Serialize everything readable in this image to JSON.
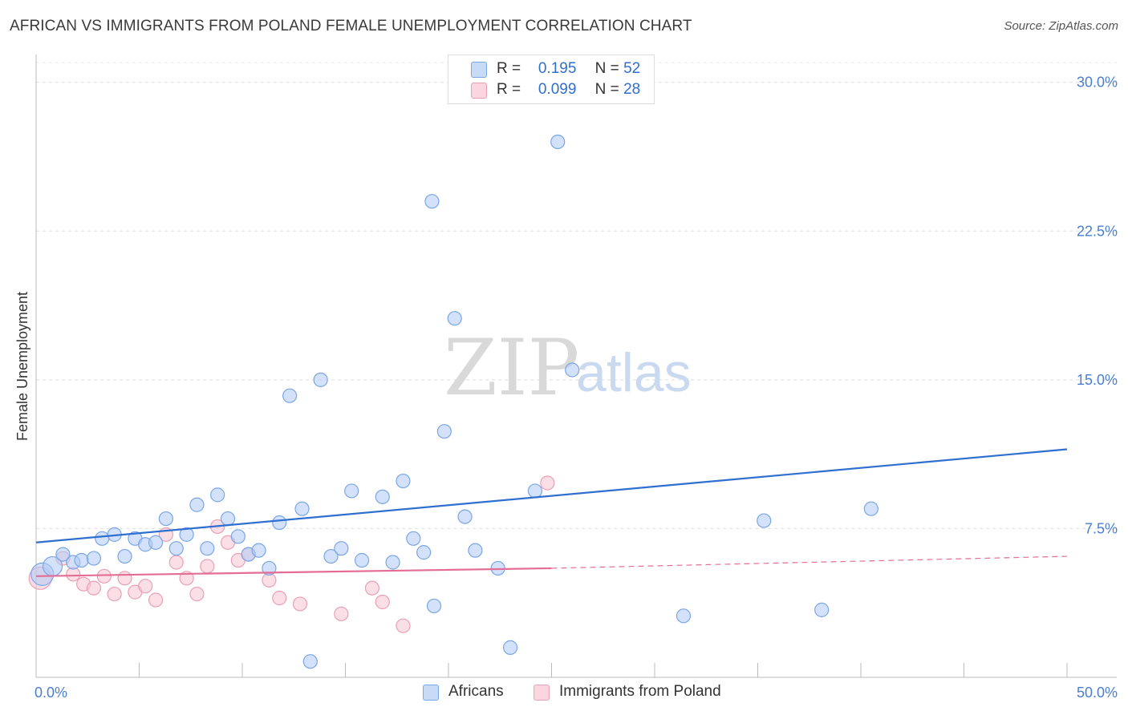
{
  "header": {
    "title": "AFRICAN VS IMMIGRANTS FROM POLAND FEMALE UNEMPLOYMENT CORRELATION CHART",
    "source": "Source: ZipAtlas.com"
  },
  "watermark": {
    "zip": "ZIP",
    "atlas": "atlas"
  },
  "legend": {
    "rows": [
      {
        "r_label": "R =",
        "r_value": "0.195",
        "n_label": "N =",
        "n_value": "52",
        "color": "#aecbf5"
      },
      {
        "r_label": "R =",
        "r_value": "0.099",
        "n_label": "N =",
        "n_value": "28",
        "color": "#f8c4d3"
      }
    ]
  },
  "bottom_legend": {
    "africans": "Africans",
    "poland": "Immigrants from Poland"
  },
  "colors": {
    "blue_fill": "#aecbf5",
    "blue_stroke": "#7aa6e6",
    "blue_line": "#2f6fd0",
    "pink_fill": "#f8c4d3",
    "pink_stroke": "#eaa0b6",
    "pink_line": "#e46d95"
  },
  "chart_data": {
    "type": "scatter",
    "title": "AFRICAN VS IMMIGRANTS FROM POLAND FEMALE UNEMPLOYMENT CORRELATION CHART",
    "xlabel": "",
    "ylabel": "Female Unemployment",
    "xlim": [
      0,
      50
    ],
    "ylim": [
      0,
      31
    ],
    "x_tick_labels": [
      "0.0%",
      "50.0%"
    ],
    "y_ticks": [
      7.5,
      15.0,
      22.5,
      30.0
    ],
    "y_tick_labels": [
      "7.5%",
      "15.0%",
      "22.5%",
      "30.0%"
    ],
    "grid": true,
    "legend_position": "top-center",
    "series": [
      {
        "name": "Africans",
        "points": [
          [
            0.3,
            5.2
          ],
          [
            0.8,
            5.6
          ],
          [
            1.3,
            6.2
          ],
          [
            1.8,
            5.8
          ],
          [
            2.2,
            5.9
          ],
          [
            2.8,
            6.0
          ],
          [
            3.2,
            7.0
          ],
          [
            3.8,
            7.2
          ],
          [
            4.3,
            6.1
          ],
          [
            4.8,
            7.0
          ],
          [
            5.3,
            6.7
          ],
          [
            5.8,
            6.8
          ],
          [
            6.3,
            8.0
          ],
          [
            6.8,
            6.5
          ],
          [
            7.3,
            7.2
          ],
          [
            7.8,
            8.7
          ],
          [
            8.3,
            6.5
          ],
          [
            8.8,
            9.2
          ],
          [
            9.3,
            8.0
          ],
          [
            9.8,
            7.1
          ],
          [
            10.3,
            6.2
          ],
          [
            10.8,
            6.4
          ],
          [
            11.3,
            5.5
          ],
          [
            11.8,
            7.8
          ],
          [
            12.3,
            14.2
          ],
          [
            12.9,
            8.5
          ],
          [
            13.3,
            0.8
          ],
          [
            13.8,
            15.0
          ],
          [
            14.3,
            6.1
          ],
          [
            14.8,
            6.5
          ],
          [
            15.3,
            9.4
          ],
          [
            15.8,
            5.9
          ],
          [
            16.8,
            9.1
          ],
          [
            17.3,
            5.8
          ],
          [
            17.8,
            9.9
          ],
          [
            18.3,
            7.0
          ],
          [
            18.8,
            6.3
          ],
          [
            19.2,
            24.0
          ],
          [
            19.3,
            3.6
          ],
          [
            19.8,
            12.4
          ],
          [
            20.3,
            18.1
          ],
          [
            20.8,
            8.1
          ],
          [
            21.3,
            6.4
          ],
          [
            22.4,
            5.5
          ],
          [
            23.0,
            1.5
          ],
          [
            24.2,
            9.4
          ],
          [
            25.3,
            27.0
          ],
          [
            26.0,
            15.5
          ],
          [
            31.4,
            3.1
          ],
          [
            35.3,
            7.9
          ],
          [
            38.1,
            3.4
          ],
          [
            40.5,
            8.5
          ]
        ]
      },
      {
        "name": "Immigrants from Poland",
        "points": [
          [
            0.2,
            5.0
          ],
          [
            1.3,
            6.0
          ],
          [
            1.8,
            5.2
          ],
          [
            2.3,
            4.7
          ],
          [
            2.8,
            4.5
          ],
          [
            3.3,
            5.1
          ],
          [
            3.8,
            4.2
          ],
          [
            4.3,
            5.0
          ],
          [
            4.8,
            4.3
          ],
          [
            5.3,
            4.6
          ],
          [
            5.8,
            3.9
          ],
          [
            6.3,
            7.2
          ],
          [
            6.8,
            5.8
          ],
          [
            7.3,
            5.0
          ],
          [
            7.8,
            4.2
          ],
          [
            8.3,
            5.6
          ],
          [
            8.8,
            7.6
          ],
          [
            9.3,
            6.8
          ],
          [
            9.8,
            5.9
          ],
          [
            10.3,
            6.2
          ],
          [
            11.3,
            4.9
          ],
          [
            11.8,
            4.0
          ],
          [
            12.8,
            3.7
          ],
          [
            14.8,
            3.2
          ],
          [
            16.3,
            4.5
          ],
          [
            16.8,
            3.8
          ],
          [
            17.8,
            2.6
          ],
          [
            24.8,
            9.8
          ]
        ]
      }
    ],
    "trendlines": [
      {
        "series": "Africans",
        "x": [
          0,
          50
        ],
        "y": [
          6.8,
          11.5
        ],
        "style": "solid"
      },
      {
        "series": "Immigrants from Poland",
        "x": [
          0,
          25
        ],
        "y": [
          5.1,
          5.5
        ],
        "style": "solid"
      },
      {
        "series": "Immigrants from Poland",
        "x": [
          25,
          50
        ],
        "y": [
          5.5,
          6.1
        ],
        "style": "dashed"
      }
    ],
    "r_values": {
      "Africans": 0.195,
      "Immigrants from Poland": 0.099
    },
    "n_values": {
      "Africans": 52,
      "Immigrants from Poland": 28
    }
  }
}
